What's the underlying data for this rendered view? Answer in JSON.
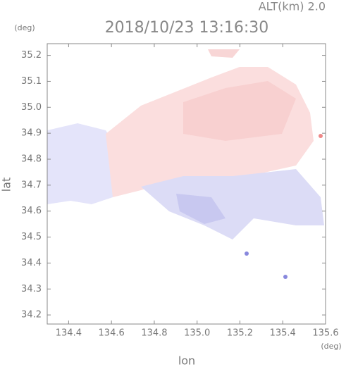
{
  "chart_data": {
    "type": "map",
    "title": "2018/10/23 13:16:30",
    "subtitle": "ALT(km) 2.0",
    "x_label": "lon",
    "y_label": "lat",
    "x_unit": "(deg)",
    "y_unit": "(deg)",
    "xlim": [
      134.3,
      135.6
    ],
    "ylim": [
      34.165,
      35.245
    ],
    "xticks": [
      134.4,
      134.6,
      134.8,
      {
        "value": 135,
        "label": "135.0"
      },
      135.2,
      135.4,
      135.6
    ],
    "yticks": [
      34.2,
      34.3,
      34.4,
      34.5,
      34.6,
      34.7,
      34.8,
      34.9,
      {
        "value": 35,
        "label": "35.0"
      },
      35.1,
      35.2
    ]
  }
}
